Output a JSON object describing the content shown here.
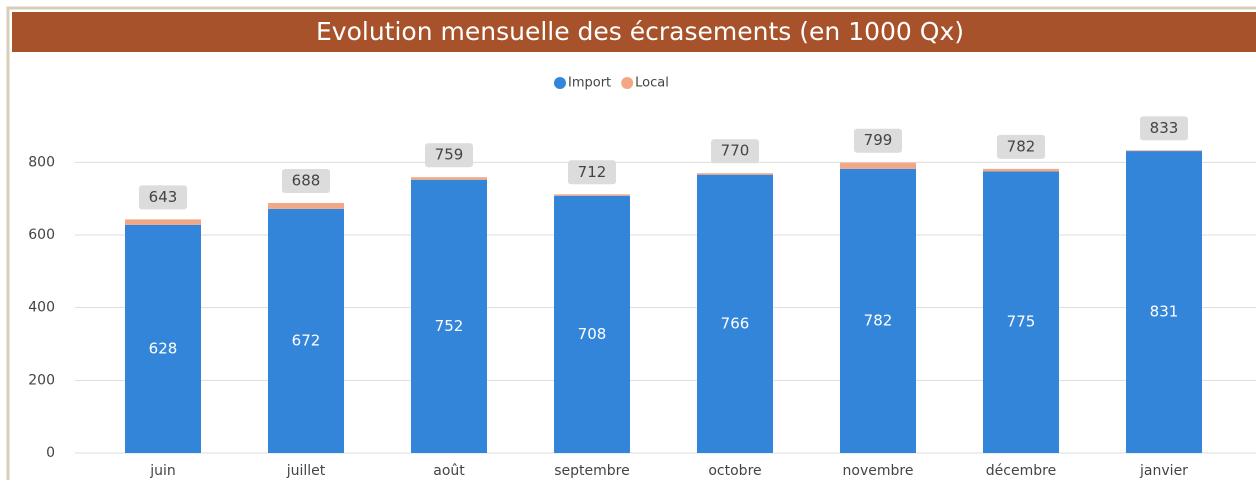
{
  "chart_data": {
    "type": "stacked-bar",
    "title": "Evolution mensuelle des écrasements (en 1000 Qx)",
    "categories": [
      "juin",
      "juillet",
      "août",
      "septembre",
      "octobre",
      "novembre",
      "décembre",
      "janvier"
    ],
    "series": [
      {
        "name": "Import",
        "color": "#3385d9",
        "values": [
          628,
          672,
          752,
          708,
          766,
          782,
          775,
          831
        ]
      },
      {
        "name": "Local",
        "color": "#f2a785",
        "values": [
          15,
          16,
          7,
          4,
          4,
          17,
          7,
          2
        ]
      }
    ],
    "totals": [
      643,
      688,
      759,
      712,
      770,
      799,
      782,
      833
    ],
    "ylim": [
      0,
      900
    ],
    "yticks": [
      0,
      200,
      400,
      600,
      800
    ],
    "grid": true,
    "legend": "top"
  }
}
